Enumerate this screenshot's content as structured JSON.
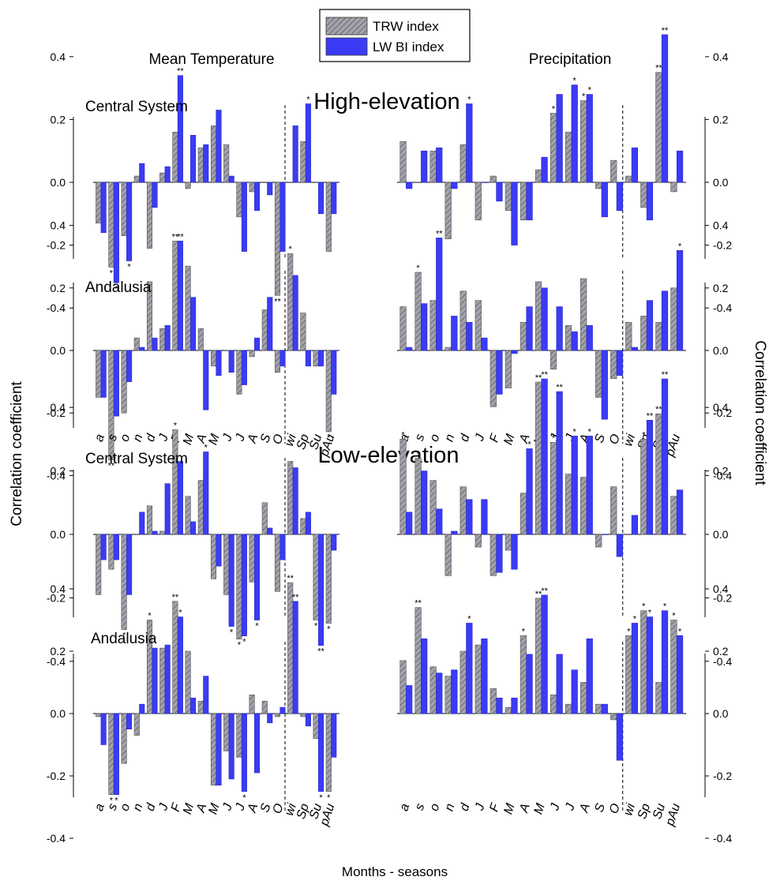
{
  "figure": {
    "legend": [
      {
        "label": "TRW index",
        "color": "#9a9aa2",
        "hatched": true
      },
      {
        "label": "LW BI index",
        "color": "#3b3bf5",
        "hatched": false
      }
    ],
    "col_titles": [
      "Mean Temperature",
      "Precipitation"
    ],
    "row_titles": [
      "High-elevation",
      "Low-elevation"
    ],
    "ylabel": "Correlation coefficient",
    "xlabel": "Months - seasons",
    "categories": [
      "a",
      "s",
      "o",
      "n",
      "d",
      "J",
      "F",
      "M",
      "A",
      "M",
      "J",
      "J",
      "A",
      "S",
      "O",
      "wi",
      "Sp",
      "Su",
      "pAu"
    ],
    "yticks": [
      "0.4",
      "0.2",
      "0.0",
      "-0.2",
      "-0.4"
    ],
    "colors": {
      "trw": "#9a9aa2",
      "lw": "#3b3bf5"
    }
  },
  "chart_data": [
    {
      "type": "bar",
      "title": "Central System",
      "group": "High-elevation",
      "variable": "Mean Temperature",
      "ylim": [
        -0.5,
        0.5
      ],
      "series": [
        {
          "name": "TRW index",
          "values": [
            -0.13,
            -0.27,
            -0.17,
            0.02,
            -0.21,
            0.03,
            0.16,
            -0.02,
            0.11,
            0.18,
            0.12,
            -0.11,
            -0.03,
            0.0,
            -0.36,
            0.0,
            0.13,
            0.0,
            -0.22
          ],
          "stars": [
            "",
            "*",
            "",
            "",
            "",
            "",
            "",
            "",
            "",
            "",
            "",
            "",
            "",
            "",
            "**",
            "",
            "",
            "",
            ""
          ]
        },
        {
          "name": "LW BI index",
          "values": [
            -0.16,
            -0.32,
            -0.25,
            0.06,
            -0.08,
            0.05,
            0.34,
            0.15,
            0.12,
            0.23,
            0.02,
            -0.22,
            -0.09,
            -0.04,
            -0.22,
            0.18,
            0.25,
            -0.1,
            -0.1
          ],
          "stars": [
            "",
            "*",
            "*",
            "",
            "",
            "",
            "**",
            "",
            "",
            "",
            "",
            "",
            "",
            "",
            "",
            "",
            "*",
            "",
            ""
          ]
        }
      ]
    },
    {
      "type": "bar",
      "title": "",
      "group": "High-elevation",
      "variable": "Precipitation",
      "ylim": [
        -0.5,
        0.5
      ],
      "series": [
        {
          "name": "TRW index",
          "values": [
            0.13,
            0.0,
            0.1,
            -0.18,
            0.12,
            -0.12,
            0.02,
            -0.09,
            -0.12,
            0.04,
            0.22,
            0.16,
            0.26,
            -0.02,
            0.07,
            0.02,
            -0.08,
            0.35,
            -0.03
          ],
          "stars": [
            "",
            "",
            "",
            "",
            "",
            "",
            "",
            "",
            "",
            "",
            "*",
            "",
            "*",
            "",
            "",
            "",
            "",
            "**",
            ""
          ]
        },
        {
          "name": "LW BI index",
          "values": [
            -0.02,
            0.1,
            0.11,
            -0.02,
            0.25,
            0.0,
            -0.06,
            -0.2,
            -0.12,
            0.08,
            0.28,
            0.31,
            0.28,
            -0.11,
            -0.09,
            0.11,
            -0.12,
            0.47,
            0.1
          ],
          "stars": [
            "",
            "",
            "",
            "",
            "*",
            "",
            "",
            "",
            "",
            "",
            "",
            "*",
            "*",
            "",
            "",
            "",
            "",
            "**",
            ""
          ]
        }
      ]
    },
    {
      "type": "bar",
      "title": "Andalusia",
      "group": "High-elevation",
      "variable": "Mean Temperature",
      "ylim": [
        -0.5,
        0.5
      ],
      "series": [
        {
          "name": "TRW index",
          "values": [
            -0.15,
            -0.35,
            -0.2,
            0.04,
            0.22,
            0.07,
            0.35,
            0.27,
            0.07,
            -0.05,
            0.0,
            -0.14,
            -0.02,
            0.13,
            -0.07,
            0.31,
            0.12,
            -0.05,
            -0.26
          ],
          "stars": [
            "",
            "**",
            "",
            "",
            "",
            "",
            "**",
            "",
            "",
            "",
            "",
            "",
            "",
            "",
            "",
            "*",
            "",
            "",
            "*"
          ]
        },
        {
          "name": "LW BI index",
          "values": [
            -0.15,
            -0.21,
            -0.1,
            0.01,
            0.04,
            0.08,
            0.35,
            0.17,
            -0.19,
            -0.08,
            -0.07,
            -0.11,
            0.04,
            0.17,
            -0.05,
            0.24,
            -0.05,
            -0.05,
            -0.14
          ],
          "stars": [
            "",
            "",
            "",
            "",
            "",
            "",
            "**",
            "",
            "",
            "",
            "",
            "",
            "",
            "",
            "",
            "",
            "",
            "",
            ""
          ]
        }
      ]
    },
    {
      "type": "bar",
      "title": "",
      "group": "High-elevation",
      "variable": "Precipitation",
      "ylim": [
        -0.5,
        0.5
      ],
      "series": [
        {
          "name": "TRW index",
          "values": [
            0.14,
            0.25,
            0.16,
            0.01,
            0.19,
            0.16,
            -0.18,
            -0.12,
            0.09,
            0.22,
            -0.06,
            0.08,
            0.23,
            -0.15,
            -0.09,
            0.09,
            0.11,
            0.09,
            0.2
          ],
          "stars": [
            "",
            "*",
            "",
            "",
            "",
            "",
            "",
            "",
            "",
            "",
            "",
            "",
            "",
            "",
            "",
            "",
            "",
            "",
            ""
          ]
        },
        {
          "name": "LW BI index",
          "values": [
            0.01,
            0.15,
            0.36,
            0.11,
            0.09,
            0.04,
            -0.14,
            -0.01,
            0.14,
            0.2,
            0.14,
            0.06,
            0.08,
            -0.22,
            -0.08,
            0.01,
            0.16,
            0.19,
            0.32
          ],
          "stars": [
            "",
            "",
            "**",
            "",
            "",
            "",
            "",
            "",
            "",
            "",
            "",
            "",
            "",
            "",
            "",
            "",
            "",
            "",
            "*"
          ]
        }
      ]
    },
    {
      "type": "bar",
      "title": "Central System",
      "group": "Low-elevation",
      "variable": "Mean Temperature",
      "ylim": [
        -0.5,
        0.5
      ],
      "series": [
        {
          "name": "TRW index",
          "values": [
            -0.19,
            -0.11,
            -0.3,
            0.0,
            0.09,
            0.01,
            0.33,
            0.12,
            0.17,
            -0.14,
            -0.19,
            -0.33,
            -0.15,
            0.1,
            -0.18,
            0.23,
            0.05,
            -0.27,
            -0.28
          ],
          "stars": [
            "",
            "",
            "*",
            "",
            "",
            "",
            "*",
            "",
            "",
            "",
            "",
            "*",
            "",
            "",
            "",
            "",
            "",
            "*",
            "*"
          ]
        },
        {
          "name": "LW BI index",
          "values": [
            -0.08,
            -0.08,
            -0.19,
            0.07,
            0.01,
            0.16,
            0.23,
            0.04,
            0.26,
            -0.1,
            -0.29,
            -0.32,
            -0.27,
            0.02,
            -0.08,
            0.21,
            0.07,
            -0.35,
            -0.05
          ],
          "stars": [
            "",
            "",
            "",
            "",
            "",
            "",
            "",
            "",
            "*",
            "",
            "*",
            "*",
            "*",
            "",
            "",
            "",
            "",
            "**",
            ""
          ]
        }
      ]
    },
    {
      "type": "bar",
      "title": "",
      "group": "Low-elevation",
      "variable": "Precipitation",
      "ylim": [
        -0.5,
        0.5
      ],
      "series": [
        {
          "name": "TRW index",
          "values": [
            0.3,
            0.24,
            0.17,
            -0.13,
            0.15,
            -0.04,
            -0.13,
            -0.05,
            0.13,
            0.48,
            0.29,
            0.19,
            0.18,
            -0.04,
            0.15,
            0.0,
            0.3,
            0.38,
            0.12
          ],
          "stars": [
            "*",
            "*",
            "",
            "",
            "",
            "",
            "",
            "",
            "",
            "**",
            "*",
            "",
            "",
            "",
            "",
            "",
            "*",
            "**",
            ""
          ]
        },
        {
          "name": "LW BI index",
          "values": [
            0.07,
            0.2,
            0.08,
            0.01,
            0.11,
            0.11,
            -0.12,
            -0.11,
            0.27,
            0.49,
            0.45,
            0.31,
            0.31,
            0.0,
            -0.07,
            0.06,
            0.36,
            0.49,
            0.14
          ],
          "stars": [
            "",
            "",
            "",
            "",
            "",
            "",
            "",
            "",
            "*",
            "**",
            "**",
            "*",
            "*",
            "",
            "",
            "",
            "**",
            "**",
            ""
          ]
        }
      ]
    },
    {
      "type": "bar",
      "title": "Andalusia",
      "group": "Low-elevation",
      "variable": "Mean Temperature",
      "ylim": [
        -0.5,
        0.5
      ],
      "series": [
        {
          "name": "TRW index",
          "values": [
            -0.01,
            -0.26,
            -0.16,
            -0.07,
            0.3,
            0.21,
            0.36,
            0.2,
            0.04,
            -0.23,
            -0.12,
            -0.14,
            0.06,
            0.04,
            -0.01,
            0.42,
            -0.01,
            -0.08,
            -0.25
          ],
          "stars": [
            "",
            "*",
            "",
            "",
            "*",
            "",
            "**",
            "",
            "",
            "",
            "",
            "",
            "",
            "",
            "",
            "**",
            "",
            "",
            "*"
          ]
        },
        {
          "name": "LW BI index",
          "values": [
            -0.1,
            -0.26,
            -0.05,
            0.03,
            0.21,
            0.22,
            0.31,
            0.05,
            0.12,
            -0.23,
            -0.21,
            -0.25,
            -0.19,
            -0.03,
            0.02,
            0.36,
            -0.04,
            -0.25,
            -0.14
          ],
          "stars": [
            "",
            "*",
            "",
            "",
            "",
            "",
            "*",
            "",
            "",
            "",
            "",
            "*",
            "",
            "",
            "",
            "**",
            "",
            "*",
            ""
          ]
        }
      ]
    },
    {
      "type": "bar",
      "title": "",
      "group": "Low-elevation",
      "variable": "Precipitation",
      "ylim": [
        -0.5,
        0.5
      ],
      "series": [
        {
          "name": "TRW index",
          "values": [
            0.17,
            0.34,
            0.15,
            0.12,
            0.2,
            0.22,
            0.08,
            0.02,
            0.25,
            0.37,
            0.06,
            0.03,
            0.1,
            0.03,
            -0.02,
            0.25,
            0.33,
            0.1,
            0.3
          ],
          "stars": [
            "",
            "**",
            "",
            "",
            "",
            "",
            "",
            "",
            "*",
            "**",
            "",
            "",
            "",
            "",
            "",
            "*",
            "*",
            "",
            "*"
          ]
        },
        {
          "name": "LW BI index",
          "values": [
            0.09,
            0.24,
            0.13,
            0.14,
            0.29,
            0.24,
            0.05,
            0.05,
            0.19,
            0.38,
            0.19,
            0.14,
            0.24,
            0.03,
            -0.15,
            0.29,
            0.31,
            0.33,
            0.25
          ],
          "stars": [
            "",
            "",
            "",
            "",
            "*",
            "",
            "",
            "",
            "",
            "**",
            "",
            "",
            "",
            "",
            "",
            "*",
            "*",
            "*",
            "*"
          ]
        }
      ]
    }
  ]
}
